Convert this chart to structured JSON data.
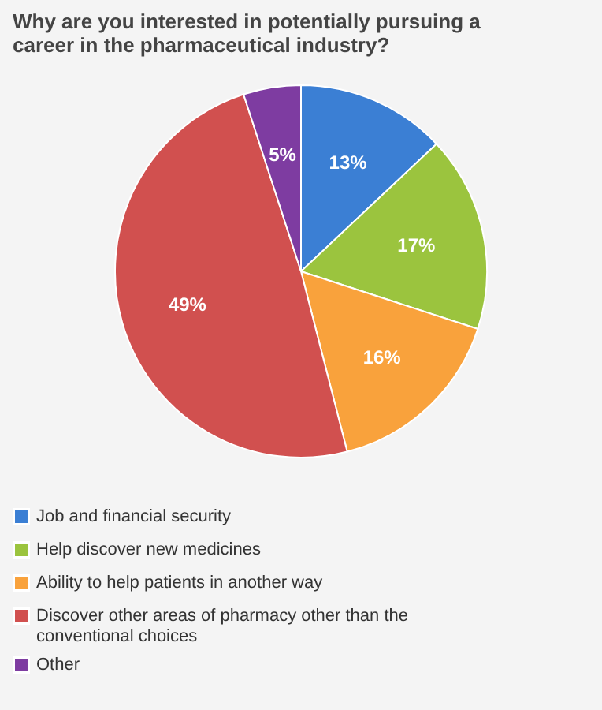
{
  "chart_data": {
    "type": "pie",
    "title": "Why are you interested in potentially pursuing a career in the pharmaceutical industry?",
    "categories": [
      "Job and financial security",
      "Help discover new medicines",
      "Ability to help patients in another way",
      "Discover other areas of pharmacy other than the conventional choices",
      "Other"
    ],
    "values": [
      13,
      17,
      16,
      49,
      5
    ],
    "colors": [
      "#3b7fd4",
      "#9bc43e",
      "#f9a23c",
      "#d1504f",
      "#7e3ca1"
    ],
    "value_labels": [
      "13%",
      "17%",
      "16%",
      "49%",
      "5%"
    ],
    "legend": "bottom"
  }
}
